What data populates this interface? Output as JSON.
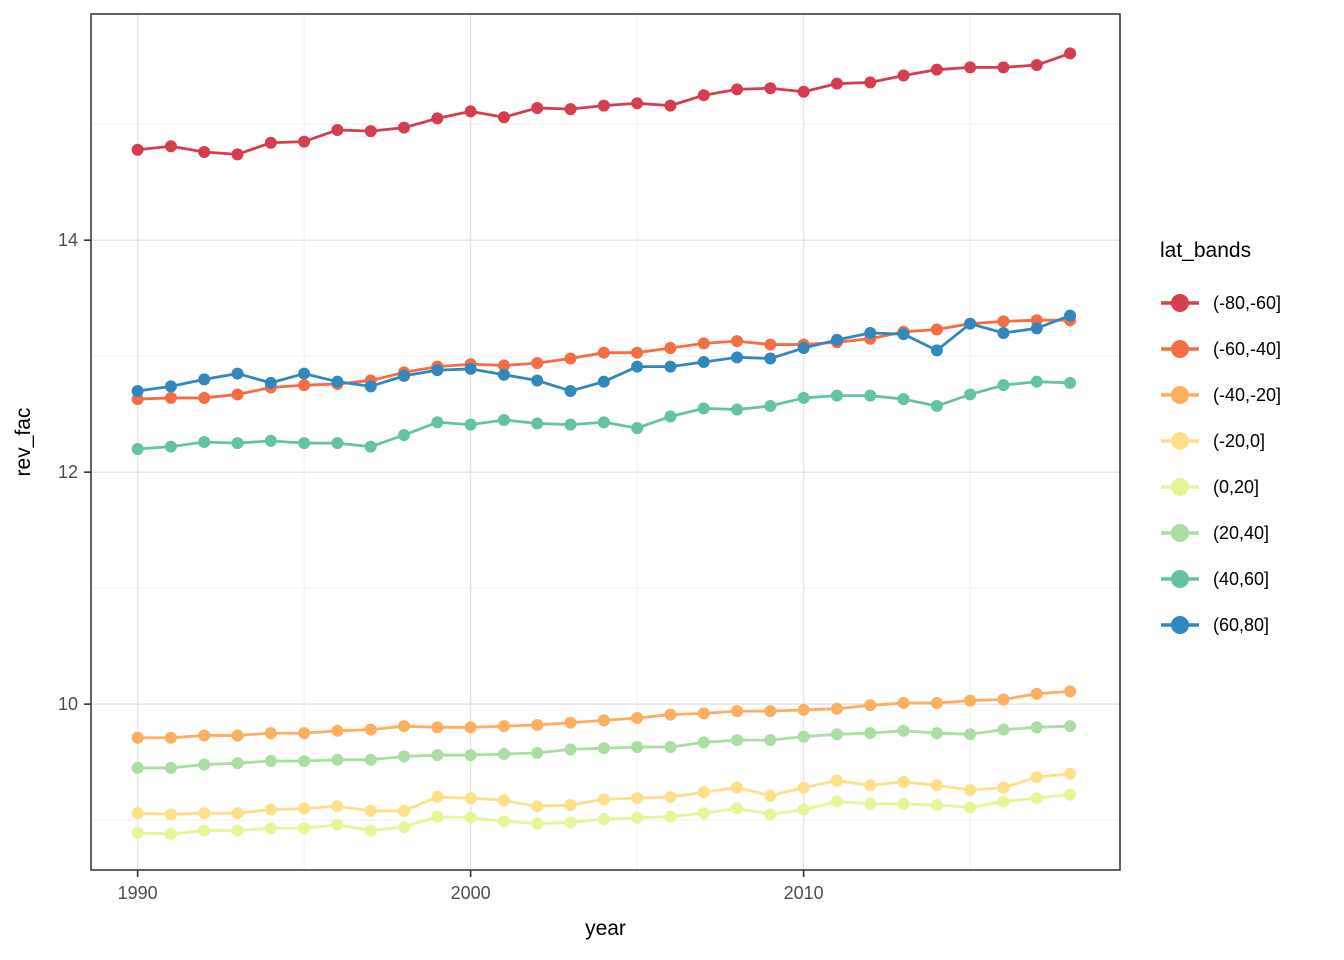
{
  "figure": {
    "x_axis_title": "year",
    "y_axis_title": "rev_fac",
    "legend_title": "lat_bands"
  },
  "chart_data": {
    "type": "line",
    "title": "",
    "xlabel": "year",
    "ylabel": "rev_fac",
    "legend_title": "lat_bands",
    "legend_position": "right",
    "grid": true,
    "x": [
      1990,
      1991,
      1992,
      1993,
      1994,
      1995,
      1996,
      1997,
      1998,
      1999,
      2000,
      2001,
      2002,
      2003,
      2004,
      2005,
      2006,
      2007,
      2008,
      2009,
      2010,
      2011,
      2012,
      2013,
      2014,
      2015,
      2016,
      2017,
      2018
    ],
    "axes": {
      "x": {
        "domain": [
          1988.6,
          2019.5
        ],
        "major_ticks": [
          1990,
          2000,
          2010
        ],
        "minor_ticks": [
          1995,
          2005,
          2015
        ],
        "tick_labels": [
          "1990",
          "2000",
          "2010"
        ]
      },
      "y": {
        "domain": [
          8.57,
          15.95
        ],
        "major_ticks": [
          10,
          12,
          14
        ],
        "minor_ticks": [
          9,
          11,
          13,
          15
        ],
        "tick_labels": [
          "10",
          "12",
          "14"
        ]
      }
    },
    "series": [
      {
        "name": "(-80,-60]",
        "color": "#d53e4f",
        "values": [
          14.78,
          14.81,
          14.76,
          14.74,
          14.84,
          14.85,
          14.95,
          14.94,
          14.97,
          15.05,
          15.11,
          15.06,
          15.14,
          15.13,
          15.16,
          15.18,
          15.16,
          15.25,
          15.3,
          15.31,
          15.28,
          15.35,
          15.36,
          15.42,
          15.47,
          15.49,
          15.49,
          15.51,
          15.61
        ]
      },
      {
        "name": "(-60,-40]",
        "color": "#f46d43",
        "values": [
          12.63,
          12.64,
          12.64,
          12.67,
          12.73,
          12.75,
          12.76,
          12.79,
          12.86,
          12.91,
          12.93,
          12.92,
          12.94,
          12.98,
          13.03,
          13.03,
          13.07,
          13.11,
          13.13,
          13.1,
          13.1,
          13.12,
          13.15,
          13.21,
          13.23,
          13.28,
          13.3,
          13.31,
          13.31
        ]
      },
      {
        "name": "(-40,-20]",
        "color": "#fdae61",
        "values": [
          9.71,
          9.71,
          9.73,
          9.73,
          9.75,
          9.75,
          9.77,
          9.78,
          9.81,
          9.8,
          9.8,
          9.81,
          9.82,
          9.84,
          9.86,
          9.88,
          9.91,
          9.92,
          9.94,
          9.94,
          9.95,
          9.96,
          9.99,
          10.01,
          10.01,
          10.03,
          10.04,
          10.09,
          10.11
        ]
      },
      {
        "name": "(-20,0]",
        "color": "#fee08b",
        "values": [
          9.06,
          9.05,
          9.06,
          9.06,
          9.09,
          9.1,
          9.12,
          9.08,
          9.08,
          9.2,
          9.19,
          9.17,
          9.12,
          9.13,
          9.18,
          9.19,
          9.2,
          9.24,
          9.28,
          9.21,
          9.28,
          9.34,
          9.3,
          9.33,
          9.3,
          9.26,
          9.28,
          9.37,
          9.4
        ]
      },
      {
        "name": "(0,20]",
        "color": "#e6f598",
        "values": [
          8.89,
          8.88,
          8.91,
          8.91,
          8.93,
          8.93,
          8.96,
          8.91,
          8.94,
          9.03,
          9.02,
          8.99,
          8.97,
          8.98,
          9.01,
          9.02,
          9.03,
          9.06,
          9.1,
          9.05,
          9.09,
          9.16,
          9.14,
          9.14,
          9.13,
          9.11,
          9.16,
          9.19,
          9.22
        ]
      },
      {
        "name": "(20,40]",
        "color": "#abdda4",
        "values": [
          9.45,
          9.45,
          9.48,
          9.49,
          9.51,
          9.51,
          9.52,
          9.52,
          9.55,
          9.56,
          9.56,
          9.57,
          9.58,
          9.61,
          9.62,
          9.63,
          9.63,
          9.67,
          9.69,
          9.69,
          9.72,
          9.74,
          9.75,
          9.77,
          9.75,
          9.74,
          9.78,
          9.8,
          9.81
        ]
      },
      {
        "name": "(40,60]",
        "color": "#66c2a5",
        "values": [
          12.2,
          12.22,
          12.26,
          12.25,
          12.27,
          12.25,
          12.25,
          12.22,
          12.32,
          12.43,
          12.41,
          12.45,
          12.42,
          12.41,
          12.43,
          12.38,
          12.48,
          12.55,
          12.54,
          12.57,
          12.64,
          12.66,
          12.66,
          12.63,
          12.57,
          12.67,
          12.75,
          12.78,
          12.77
        ]
      },
      {
        "name": "(60,80]",
        "color": "#3288bd",
        "values": [
          12.7,
          12.74,
          12.8,
          12.85,
          12.77,
          12.85,
          12.78,
          12.74,
          12.83,
          12.88,
          12.89,
          12.84,
          12.79,
          12.7,
          12.78,
          12.91,
          12.91,
          12.95,
          12.99,
          12.98,
          13.07,
          13.14,
          13.2,
          13.19,
          13.05,
          13.28,
          13.2,
          13.24,
          13.35
        ]
      }
    ],
    "style": {
      "panel_background": "#ffffff",
      "panel_border": "#3c3c3c",
      "grid_major": "#e4e4e4",
      "grid_minor": "#f1f1f1",
      "tick_mark_color": "#333333",
      "tick_label_color": "#4d4d4d"
    }
  }
}
